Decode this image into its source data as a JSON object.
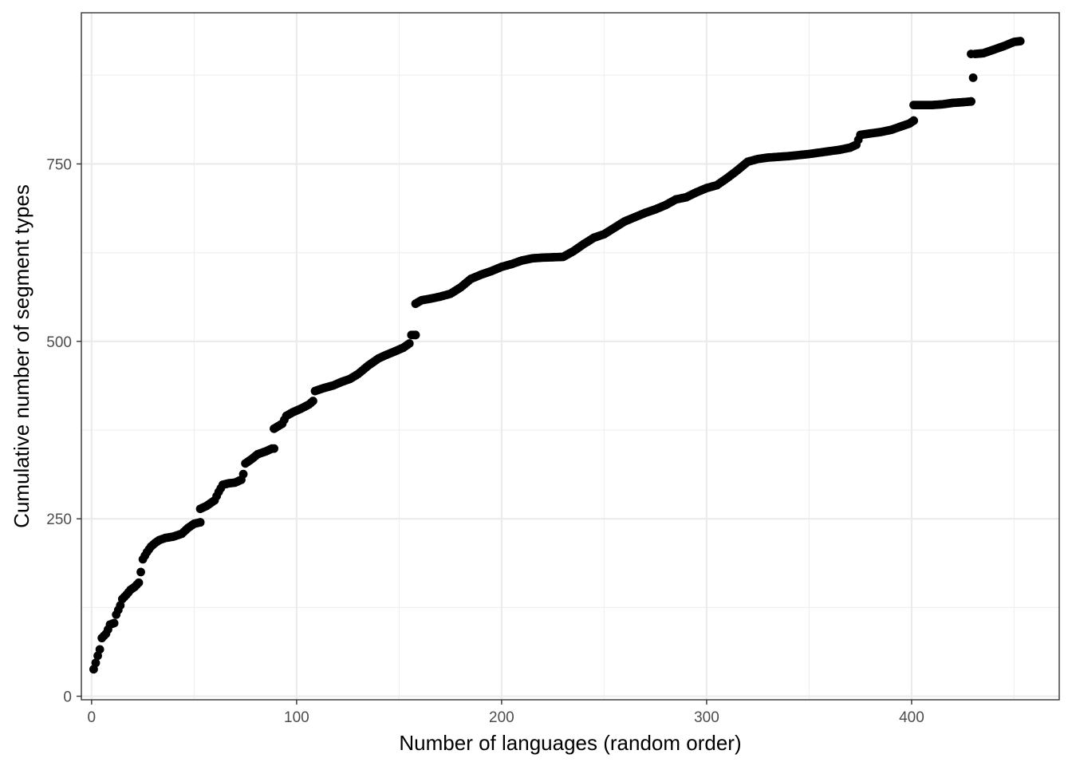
{
  "chart_data": {
    "type": "scatter",
    "xlabel": "Number of languages (random order)",
    "ylabel": "Cumulative number of segment types",
    "xlim": [
      -5,
      472
    ],
    "ylim": [
      -5,
      963
    ],
    "x_ticks": [
      0,
      100,
      200,
      300,
      400
    ],
    "y_ticks": [
      0,
      250,
      500,
      750
    ],
    "x_tick_labels": [
      "0",
      "100",
      "200",
      "300",
      "400"
    ],
    "y_tick_labels": [
      "0",
      "250",
      "500",
      "750"
    ],
    "grid": true,
    "point_color": "#000000",
    "knots": [
      [
        1,
        38
      ],
      [
        2,
        47
      ],
      [
        3,
        57
      ],
      [
        4,
        66
      ],
      [
        5,
        82
      ],
      [
        7,
        88
      ],
      [
        8,
        94
      ],
      [
        9,
        101
      ],
      [
        11,
        103
      ],
      [
        12,
        115
      ],
      [
        14,
        128
      ],
      [
        15,
        137
      ],
      [
        17,
        143
      ],
      [
        19,
        150
      ],
      [
        21,
        154
      ],
      [
        23,
        160
      ],
      [
        24,
        175
      ],
      [
        25,
        193
      ],
      [
        27,
        203
      ],
      [
        29,
        211
      ],
      [
        31,
        216
      ],
      [
        33,
        220
      ],
      [
        36,
        223
      ],
      [
        40,
        225
      ],
      [
        44,
        229
      ],
      [
        47,
        237
      ],
      [
        50,
        243
      ],
      [
        53,
        245
      ],
      [
        53,
        264
      ],
      [
        56,
        268
      ],
      [
        60,
        276
      ],
      [
        62,
        288
      ],
      [
        64,
        298
      ],
      [
        67,
        300
      ],
      [
        70,
        301
      ],
      [
        73,
        305
      ],
      [
        74,
        313
      ],
      [
        75,
        328
      ],
      [
        78,
        334
      ],
      [
        81,
        341
      ],
      [
        85,
        345
      ],
      [
        88,
        349
      ],
      [
        89,
        377
      ],
      [
        93,
        384
      ],
      [
        95,
        395
      ],
      [
        98,
        400
      ],
      [
        102,
        405
      ],
      [
        106,
        411
      ],
      [
        108,
        416
      ],
      [
        109,
        430
      ],
      [
        113,
        434
      ],
      [
        118,
        438
      ],
      [
        122,
        443
      ],
      [
        126,
        447
      ],
      [
        130,
        454
      ],
      [
        135,
        466
      ],
      [
        140,
        476
      ],
      [
        143,
        480
      ],
      [
        148,
        486
      ],
      [
        152,
        491
      ],
      [
        155,
        497
      ],
      [
        156,
        509
      ],
      [
        158,
        509
      ],
      [
        158,
        553
      ],
      [
        161,
        558
      ],
      [
        165,
        560
      ],
      [
        170,
        563
      ],
      [
        175,
        567
      ],
      [
        180,
        576
      ],
      [
        185,
        588
      ],
      [
        190,
        594
      ],
      [
        195,
        599
      ],
      [
        200,
        605
      ],
      [
        205,
        609
      ],
      [
        210,
        614
      ],
      [
        215,
        617
      ],
      [
        220,
        618
      ],
      [
        230,
        619
      ],
      [
        235,
        627
      ],
      [
        240,
        637
      ],
      [
        245,
        646
      ],
      [
        250,
        651
      ],
      [
        255,
        660
      ],
      [
        260,
        669
      ],
      [
        265,
        675
      ],
      [
        270,
        681
      ],
      [
        275,
        686
      ],
      [
        280,
        692
      ],
      [
        285,
        700
      ],
      [
        290,
        703
      ],
      [
        295,
        710
      ],
      [
        300,
        716
      ],
      [
        305,
        720
      ],
      [
        310,
        730
      ],
      [
        315,
        741
      ],
      [
        320,
        753
      ],
      [
        325,
        757
      ],
      [
        330,
        759
      ],
      [
        340,
        761
      ],
      [
        350,
        764
      ],
      [
        360,
        768
      ],
      [
        365,
        770
      ],
      [
        370,
        773
      ],
      [
        373,
        777
      ],
      [
        375,
        791
      ],
      [
        380,
        793
      ],
      [
        385,
        795
      ],
      [
        390,
        798
      ],
      [
        395,
        803
      ],
      [
        399,
        807
      ],
      [
        401,
        811
      ],
      [
        402,
        833
      ],
      [
        410,
        833
      ],
      [
        415,
        834
      ],
      [
        420,
        836
      ],
      [
        425,
        837
      ],
      [
        429,
        838
      ],
      [
        431,
        905
      ],
      [
        435,
        906
      ],
      [
        440,
        911
      ],
      [
        445,
        916
      ],
      [
        450,
        922
      ],
      [
        453,
        923
      ]
    ],
    "gaps": [
      [
        53,
        245,
        264
      ],
      [
        89,
        349,
        377
      ],
      [
        158,
        509,
        553
      ],
      [
        401,
        811,
        833
      ],
      [
        429,
        838,
        905
      ]
    ]
  }
}
